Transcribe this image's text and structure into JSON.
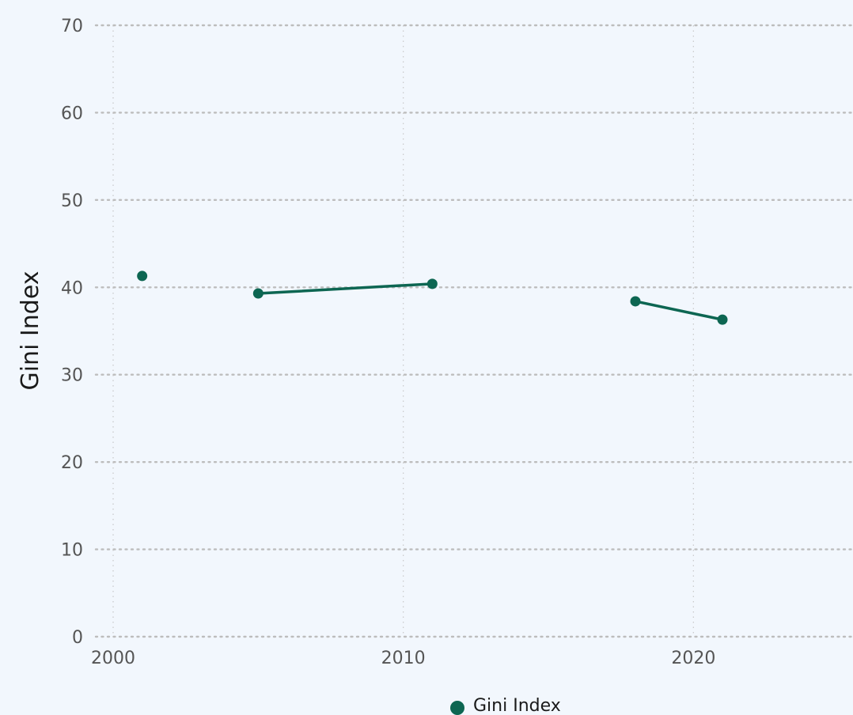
{
  "chart_data": {
    "type": "line",
    "title": "",
    "xlabel": "",
    "ylabel": "Gini Index",
    "xlim": [
      1999.4,
      2025.5
    ],
    "ylim": [
      0,
      70
    ],
    "x_ticks": [
      2000,
      2010,
      2020
    ],
    "y_ticks": [
      0,
      10,
      20,
      30,
      40,
      50,
      60,
      70
    ],
    "grid": true,
    "legend_position": "bottom",
    "series": [
      {
        "name": "Gini Index",
        "color": "#0d6652",
        "points": [
          {
            "x": 2001,
            "y": 41.3
          },
          {
            "x": 2005,
            "y": 39.3
          },
          {
            "x": 2011,
            "y": 40.4
          },
          {
            "x": 2018,
            "y": 38.4
          },
          {
            "x": 2021,
            "y": 36.3
          }
        ],
        "segments": [
          [
            2001
          ],
          [
            2005,
            2011
          ],
          [
            2018,
            2021
          ]
        ]
      }
    ]
  }
}
